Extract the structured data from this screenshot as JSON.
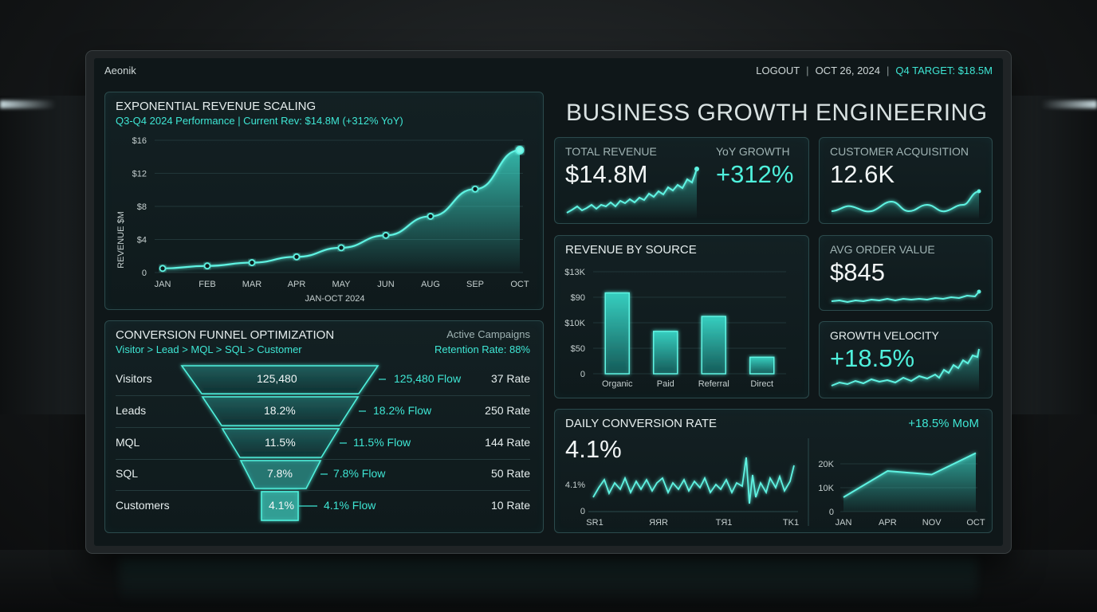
{
  "app": {
    "brand": "Aeonik"
  },
  "topnav": {
    "logout": "LOGOUT",
    "date": "OCT 26, 2024",
    "target": "Q4 TARGET: $18.5M"
  },
  "hero": {
    "title": "BUSINESS GROWTH ENGINEERING"
  },
  "revenue_scaling": {
    "title": "EXPONENTIAL REVENUE SCALING",
    "subtitle": "Q3-Q4 2024 Performance | Current Rev: $14.8M (+312% YoY)",
    "ylabel": "REVENUE $M",
    "xlabel": "JAN-OCT 2024",
    "yticks": [
      "$16",
      "$12",
      "$8",
      "$4",
      "0"
    ]
  },
  "funnel": {
    "title": "CONVERSION FUNNEL OPTIMIZATION",
    "path": "Visitor > Lead > MQL > SQL > Customer",
    "active": "Active Campaigns",
    "retention": "Retention Rate: 88%",
    "rows": [
      {
        "label": "Visitors",
        "stage": "125,480",
        "flow": "125,480 Flow",
        "rate": "37 Rate"
      },
      {
        "label": "Leads",
        "stage": "18.2%",
        "flow": "18.2% Flow",
        "rate": "250 Rate"
      },
      {
        "label": "MQL",
        "stage": "11.5%",
        "flow": "11.5% Flow",
        "rate": "144 Rate"
      },
      {
        "label": "SQL",
        "stage": "7.8%",
        "flow": "7.8% Flow",
        "rate": "50 Rate"
      },
      {
        "label": "Customers",
        "stage": "4.1%",
        "flow": "4.1% Flow",
        "rate": "10 Rate"
      }
    ]
  },
  "kpis": {
    "total_revenue": {
      "label": "TOTAL REVENUE",
      "value": "$14.8M"
    },
    "yoy": {
      "label": "YoY GROWTH",
      "value": "+312%"
    },
    "acquisition": {
      "label": "CUSTOMER ACQUISITION",
      "value": "12.6K"
    },
    "aov": {
      "label": "AVG ORDER VALUE",
      "value": "$845"
    },
    "velocity": {
      "label": "GROWTH VELOCITY",
      "value": "+18.5%"
    }
  },
  "revenue_source": {
    "title": "REVENUE BY SOURCE",
    "yticks": [
      "$13K",
      "$90",
      "$10K",
      "$50",
      "0"
    ]
  },
  "daily_conversion": {
    "title": "DAILY CONVERSION RATE",
    "mom": "+18.5% MoM",
    "value": "4.1%",
    "yticks": [
      "4.1%",
      "0"
    ],
    "xticks": [
      "SR1",
      "ЯЯR",
      "TЯ1",
      "TK1"
    ],
    "right_yticks": [
      "20K",
      "10K",
      "0"
    ]
  },
  "colors": {
    "accent": "#3ee6d4",
    "panel_border": "#2b4a4c",
    "background": "#0f1719"
  },
  "chart_data": [
    {
      "type": "line",
      "x": [
        "JAN",
        "FEB",
        "MAR",
        "APR",
        "MAY",
        "JUN",
        "AUG",
        "SEP",
        "OCT"
      ],
      "values": [
        0.5,
        0.8,
        1.2,
        1.9,
        3.0,
        4.5,
        6.8,
        10.1,
        14.8
      ],
      "ylim": [
        0,
        16
      ],
      "grid": true
    },
    {
      "type": "bar",
      "categories": [
        "Organic",
        "Paid",
        "Referral",
        "Direct"
      ],
      "values": [
        103,
        54,
        73,
        21
      ],
      "ylim": [
        0,
        130
      ],
      "grid": true
    },
    {
      "type": "area",
      "x": [
        "JAN",
        "APR",
        "NOV",
        "OCT"
      ],
      "values": [
        6000,
        17000,
        15500,
        24500
      ],
      "ylim": [
        0,
        26000
      ],
      "grid": true
    }
  ]
}
